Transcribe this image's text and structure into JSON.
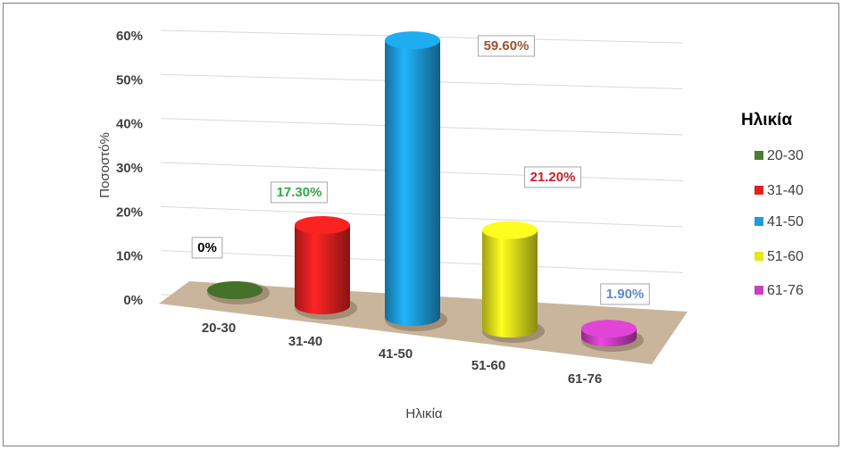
{
  "chart_data": {
    "type": "bar",
    "categories": [
      "20-30",
      "31-40",
      "41-50",
      "51-60",
      "61-76"
    ],
    "values": [
      0,
      17.3,
      59.6,
      21.2,
      1.9
    ],
    "value_labels": [
      "0%",
      "17.30%",
      "59.60%",
      "21.20%",
      "1.90%"
    ],
    "colors": [
      "#4e7d2e",
      "#e3201f",
      "#1c9ddc",
      "#e6e61c",
      "#cc3fc4"
    ],
    "label_colors": [
      "#000000",
      "#2ea84c",
      "#a0522d",
      "#c8202c",
      "#5a8ac8"
    ],
    "ylim": [
      0,
      60
    ],
    "yticks": [
      {
        "value": 0,
        "label": "0%"
      },
      {
        "value": 10,
        "label": "10%"
      },
      {
        "value": 20,
        "label": "20%"
      },
      {
        "value": 30,
        "label": "30%"
      },
      {
        "value": 40,
        "label": "40%"
      },
      {
        "value": 50,
        "label": "50%"
      },
      {
        "value": 60,
        "label": "60%"
      }
    ],
    "x_label": "Ηλικία",
    "y_label": "Ποσοστό%",
    "legend_title": "Ηλικία",
    "legend": "right",
    "grid": true
  }
}
